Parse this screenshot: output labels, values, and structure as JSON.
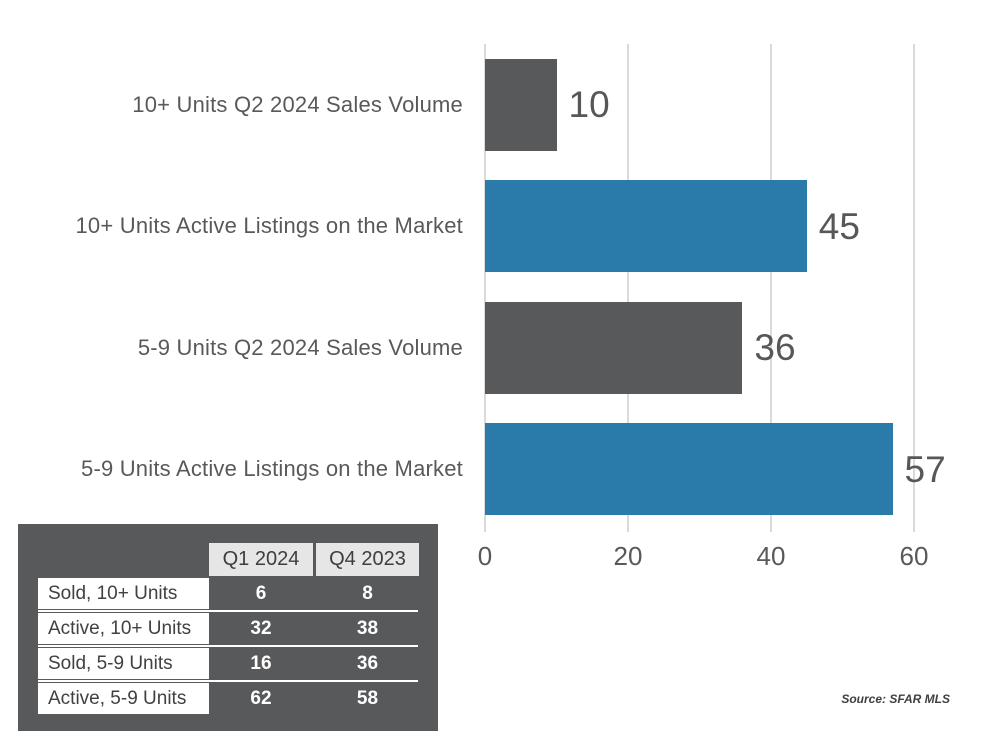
{
  "chart_data": {
    "type": "bar",
    "orientation": "horizontal",
    "categories": [
      "10+ Units Q2 2024 Sales Volume",
      "10+ Units Active Listings on the Market",
      "5-9 Units Q2 2024 Sales Volume",
      "5-9 Units Active Listings on the Market"
    ],
    "values": [
      10,
      45,
      36,
      57
    ],
    "bar_colors": [
      "#58595b",
      "#2a7baa",
      "#58595b",
      "#2a7baa"
    ],
    "value_labels": [
      "10",
      "45",
      "36",
      "57"
    ],
    "xlim": [
      0,
      60
    ],
    "xticks": [
      "0",
      "20",
      "40",
      "60"
    ],
    "grid": true,
    "legend": "none",
    "title": ""
  },
  "table": {
    "column_headers": [
      "Q1 2024",
      "Q4 2023"
    ],
    "rows": [
      {
        "label": "Sold, 10+ Units",
        "values": [
          "6",
          "8"
        ]
      },
      {
        "label": "Active, 10+ Units",
        "values": [
          "32",
          "38"
        ]
      },
      {
        "label": "Sold, 5-9 Units",
        "values": [
          "16",
          "36"
        ]
      },
      {
        "label": "Active, 5-9 Units",
        "values": [
          "62",
          "58"
        ]
      }
    ]
  },
  "source_note": "Source: SFAR MLS",
  "colors": {
    "bar_blue": "#2a7baa",
    "bar_gray": "#58595b",
    "panel_background": "#58595b",
    "header_cell_background": "#e6e6e7",
    "gridline": "#dadada",
    "label_text": "#595959",
    "value_text": "#565759"
  }
}
